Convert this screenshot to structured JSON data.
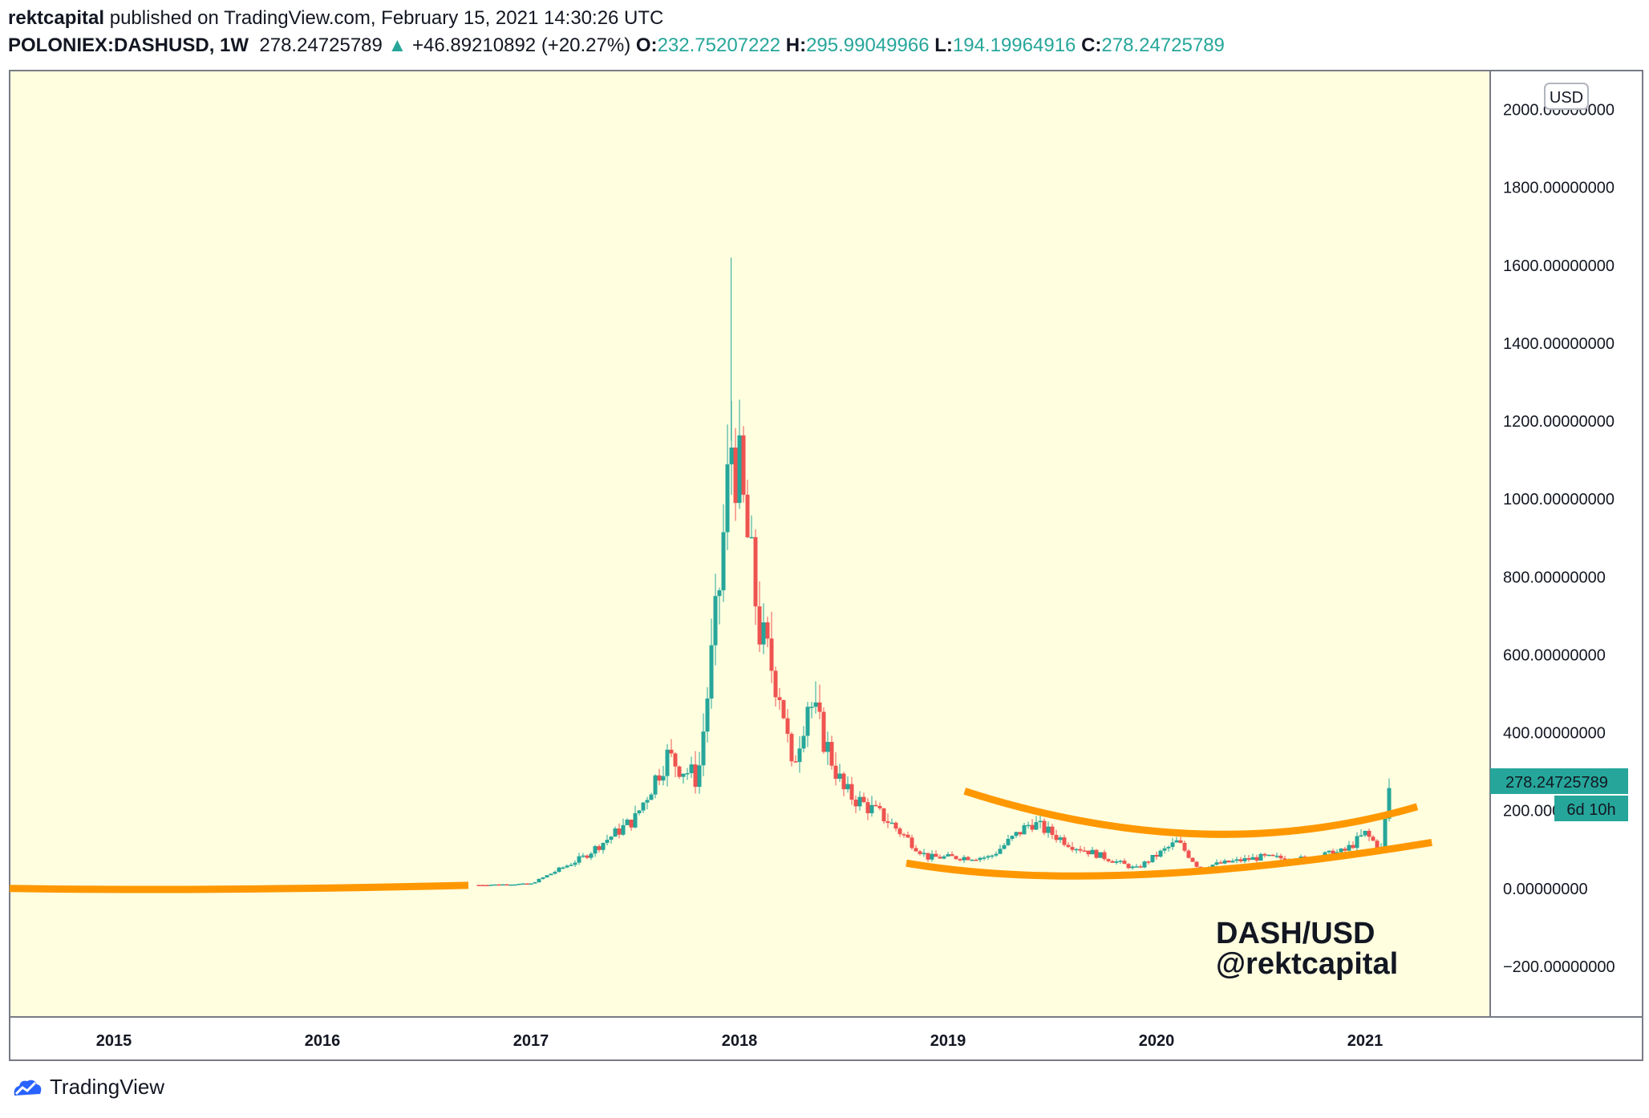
{
  "header": {
    "author": "rektcapital",
    "published_text": "published on TradingView.com, February 15, 2021 14:30:26 UTC",
    "symbol": "POLONIEX:DASHUSD, 1W",
    "last_price": "278.24725789",
    "change": "+46.89210892 (+20.27%)",
    "open_label": "O:",
    "open": "232.75207222",
    "high_label": "H:",
    "high": "295.99049966",
    "low_label": "L:",
    "low": "194.19964916",
    "close_label": "C:",
    "close": "278.24725789"
  },
  "chart_data": {
    "type": "candlestick",
    "currency_label": "USD",
    "y_ticks": [
      "2000.00000000",
      "1800.00000000",
      "1600.00000000",
      "1400.00000000",
      "1200.00000000",
      "1000.00000000",
      "800.00000000",
      "600.00000000",
      "400.00000000",
      "200.00000000",
      "0.00000000",
      "−200.00000000"
    ],
    "y_tick_values": [
      2000,
      1800,
      1600,
      1400,
      1200,
      1000,
      800,
      600,
      400,
      200,
      0,
      -200
    ],
    "ylim": [
      -330,
      2100
    ],
    "x_ticks": [
      "2015",
      "2016",
      "2017",
      "2018",
      "2019",
      "2020",
      "2021"
    ],
    "x_tick_values": [
      2015,
      2016,
      2017,
      2018,
      2019,
      2020,
      2021
    ],
    "xlim": [
      2014.5,
      2021.6
    ],
    "price_label": "278.24725789",
    "countdown_label": "6d 10h",
    "annotation_lines": [
      "DASH/USD",
      "@rektcapital"
    ],
    "colors": {
      "background": "#ffffe0",
      "up": "#26a69a",
      "down": "#ef5350",
      "trendline": "#ff9800",
      "price_tag": "#26a69a"
    },
    "key_points": [
      {
        "date": "2014.5",
        "price": 2
      },
      {
        "date": "2016.75",
        "price": 9
      },
      {
        "date": "2017.0",
        "price": 12
      },
      {
        "date": "2017.25",
        "price": 80
      },
      {
        "date": "2017.5",
        "price": 180
      },
      {
        "date": "2017.65",
        "price": 340
      },
      {
        "date": "2017.8",
        "price": 280
      },
      {
        "date": "2017.9",
        "price": 750
      },
      {
        "date": "2017.96",
        "price": 1150
      },
      {
        "date": "2018.0",
        "price": 1050
      },
      {
        "date": "2018.1",
        "price": 650
      },
      {
        "date": "2018.2",
        "price": 500
      },
      {
        "date": "2018.25",
        "price": 300
      },
      {
        "date": "2018.33",
        "price": 490
      },
      {
        "date": "2018.5",
        "price": 250
      },
      {
        "date": "2018.7",
        "price": 180
      },
      {
        "date": "2018.9",
        "price": 80
      },
      {
        "date": "2019.2",
        "price": 80
      },
      {
        "date": "2019.4",
        "price": 170
      },
      {
        "date": "2019.6",
        "price": 110
      },
      {
        "date": "2019.9",
        "price": 50
      },
      {
        "date": "2020.1",
        "price": 120
      },
      {
        "date": "2020.2",
        "price": 55
      },
      {
        "date": "2020.5",
        "price": 80
      },
      {
        "date": "2020.7",
        "price": 75
      },
      {
        "date": "2020.9",
        "price": 95
      },
      {
        "date": "2021.0",
        "price": 140
      },
      {
        "date": "2021.08",
        "price": 100
      },
      {
        "date": "2021.12",
        "price": 278
      }
    ],
    "trendlines": [
      {
        "name": "left-base",
        "points": [
          [
            2014.5,
            0
          ],
          [
            2015.5,
            -2
          ],
          [
            2016.7,
            8
          ]
        ]
      },
      {
        "name": "upper-arc",
        "points": [
          [
            2019.08,
            250
          ],
          [
            2020.2,
            140
          ],
          [
            2021.25,
            210
          ]
        ]
      },
      {
        "name": "lower-arc",
        "points": [
          [
            2018.8,
            65
          ],
          [
            2019.9,
            35
          ],
          [
            2021.32,
            118
          ]
        ]
      }
    ]
  },
  "footer": {
    "brand": "TradingView",
    "icon": "tradingview-logo-icon"
  }
}
